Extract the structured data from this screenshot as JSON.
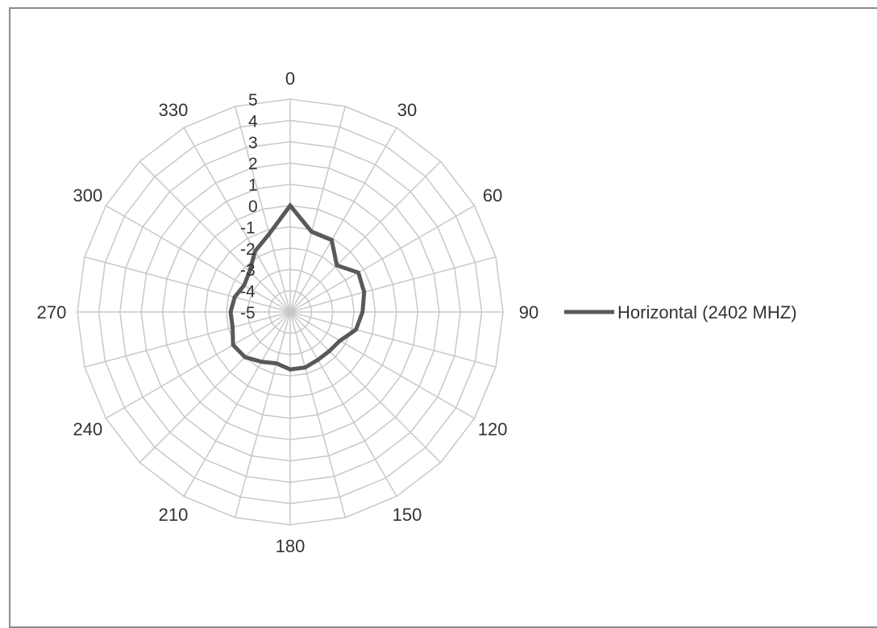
{
  "chart_data": {
    "type": "radar",
    "angles": [
      0,
      15,
      30,
      45,
      60,
      75,
      90,
      105,
      120,
      135,
      150,
      165,
      180,
      195,
      210,
      225,
      240,
      255,
      270,
      285,
      300,
      315,
      330,
      345
    ],
    "angle_labels": [
      "0",
      "30",
      "60",
      "90",
      "120",
      "150",
      "180",
      "210",
      "240",
      "270",
      "300",
      "330"
    ],
    "radial_ticks": [
      "5",
      "4",
      "3",
      "2",
      "1",
      "0",
      "-1",
      "-2",
      "-3",
      "-4",
      "-5"
    ],
    "rlim": [
      -5,
      5
    ],
    "series": [
      {
        "name": "Horizontal (2402 MHZ)",
        "color": "#595959",
        "values": [
          0.0,
          -1.1,
          -1.1,
          -1.9,
          -1.3,
          -1.4,
          -1.6,
          -1.8,
          -2.3,
          -2.4,
          -2.4,
          -2.3,
          -2.3,
          -2.5,
          -2.3,
          -2.0,
          -1.9,
          -2.2,
          -2.2,
          -2.3,
          -2.5,
          -2.3,
          -1.7,
          -1.2
        ]
      }
    ],
    "legend": "right",
    "grid": true
  }
}
